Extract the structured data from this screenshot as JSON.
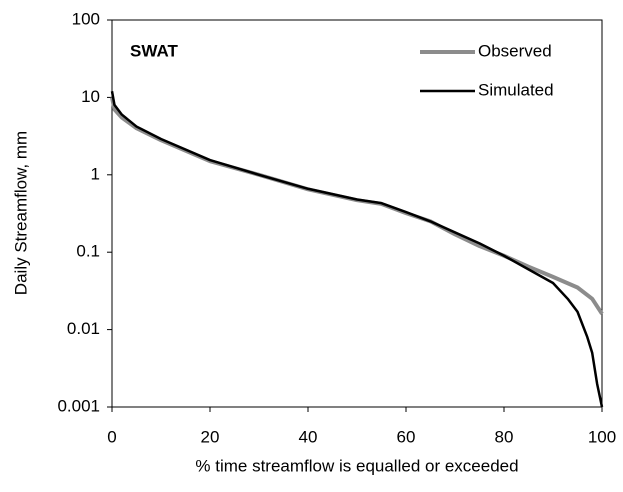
{
  "chart_data": {
    "type": "line",
    "annotation": "SWAT",
    "xlabel": "% time streamflow is equalled or exceeded",
    "ylabel": "Daily Streamflow, mm",
    "xlim": [
      0,
      100
    ],
    "xticks": [
      0,
      20,
      40,
      60,
      80,
      100
    ],
    "ylim": [
      0.001,
      100
    ],
    "yticks": [
      100,
      10,
      1,
      0.1,
      0.01,
      0.001
    ],
    "ylog": true,
    "grid": false,
    "legend": "upper right",
    "series": [
      {
        "name": "Observed",
        "color": "#8c8c8c",
        "width": 4,
        "x": [
          0,
          0.5,
          2,
          5,
          10,
          20,
          30,
          40,
          50,
          55,
          60,
          65,
          70,
          75,
          80,
          85,
          90,
          95,
          98,
          100
        ],
        "values": [
          10,
          7,
          5.5,
          4,
          2.8,
          1.5,
          1.0,
          0.65,
          0.47,
          0.42,
          0.32,
          0.25,
          0.17,
          0.12,
          0.09,
          0.065,
          0.048,
          0.035,
          0.025,
          0.016
        ]
      },
      {
        "name": "Simulated",
        "color": "#000000",
        "width": 2.5,
        "x": [
          0,
          0.5,
          2,
          5,
          10,
          20,
          30,
          40,
          50,
          55,
          60,
          65,
          70,
          75,
          80,
          85,
          90,
          93,
          95,
          97,
          98,
          99,
          100
        ],
        "values": [
          12,
          8,
          6,
          4.2,
          2.9,
          1.55,
          1.0,
          0.66,
          0.48,
          0.43,
          0.33,
          0.25,
          0.18,
          0.13,
          0.09,
          0.06,
          0.04,
          0.025,
          0.017,
          0.008,
          0.005,
          0.002,
          0.001
        ]
      }
    ]
  }
}
